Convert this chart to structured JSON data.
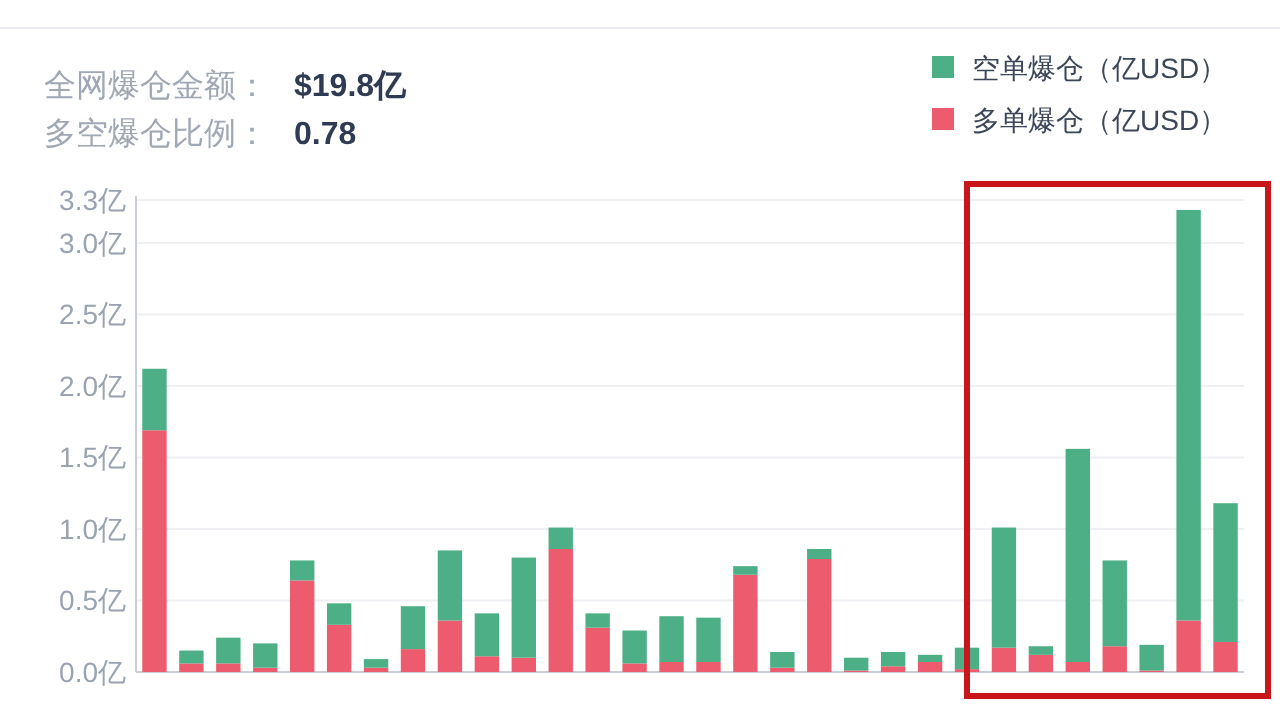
{
  "chart_data": {
    "type": "bar",
    "stacked": true,
    "categories": [
      null,
      null,
      null,
      null,
      null,
      null,
      null,
      null,
      null,
      null,
      null,
      null,
      null,
      null,
      null,
      null,
      null,
      null,
      null,
      null,
      null,
      null,
      null,
      null,
      null,
      null,
      null,
      null,
      null,
      null
    ],
    "series": [
      {
        "name": "多单爆仓（亿USD）",
        "color": "#ec5b6e",
        "values": [
          1.69,
          0.06,
          0.06,
          0.03,
          0.64,
          0.33,
          0.03,
          0.16,
          0.36,
          0.11,
          0.1,
          0.86,
          0.31,
          0.06,
          0.07,
          0.07,
          0.68,
          0.03,
          0.79,
          0.01,
          0.04,
          0.07,
          0.02,
          0.17,
          0.12,
          0.07,
          0.18,
          0.01,
          0.36,
          0.21
        ]
      },
      {
        "name": "空单爆仓（亿USD）",
        "color": "#4caf85",
        "values": [
          0.43,
          0.09,
          0.18,
          0.17,
          0.14,
          0.15,
          0.06,
          0.3,
          0.49,
          0.3,
          0.7,
          0.15,
          0.1,
          0.23,
          0.32,
          0.31,
          0.06,
          0.11,
          0.07,
          0.09,
          0.1,
          0.05,
          0.15,
          0.84,
          0.06,
          1.49,
          0.6,
          0.18,
          2.87,
          0.97
        ]
      }
    ],
    "ylim": [
      0,
      3.3
    ],
    "yticks": [
      {
        "value": 0,
        "label": "0.0亿"
      },
      {
        "value": 0.5,
        "label": "0.5亿"
      },
      {
        "value": 1,
        "label": "1.0亿"
      },
      {
        "value": 1.5,
        "label": "1.5亿"
      },
      {
        "value": 2,
        "label": "2.0亿"
      },
      {
        "value": 2.5,
        "label": "2.5亿"
      },
      {
        "value": 3,
        "label": "3.0亿"
      },
      {
        "value": 3.3,
        "label": "3.3亿"
      }
    ],
    "grid": "y",
    "legend": "top right",
    "annotations": [
      "全网爆仓金额：",
      "$19.8亿",
      "多空爆仓比例：",
      "0.78"
    ]
  }
}
